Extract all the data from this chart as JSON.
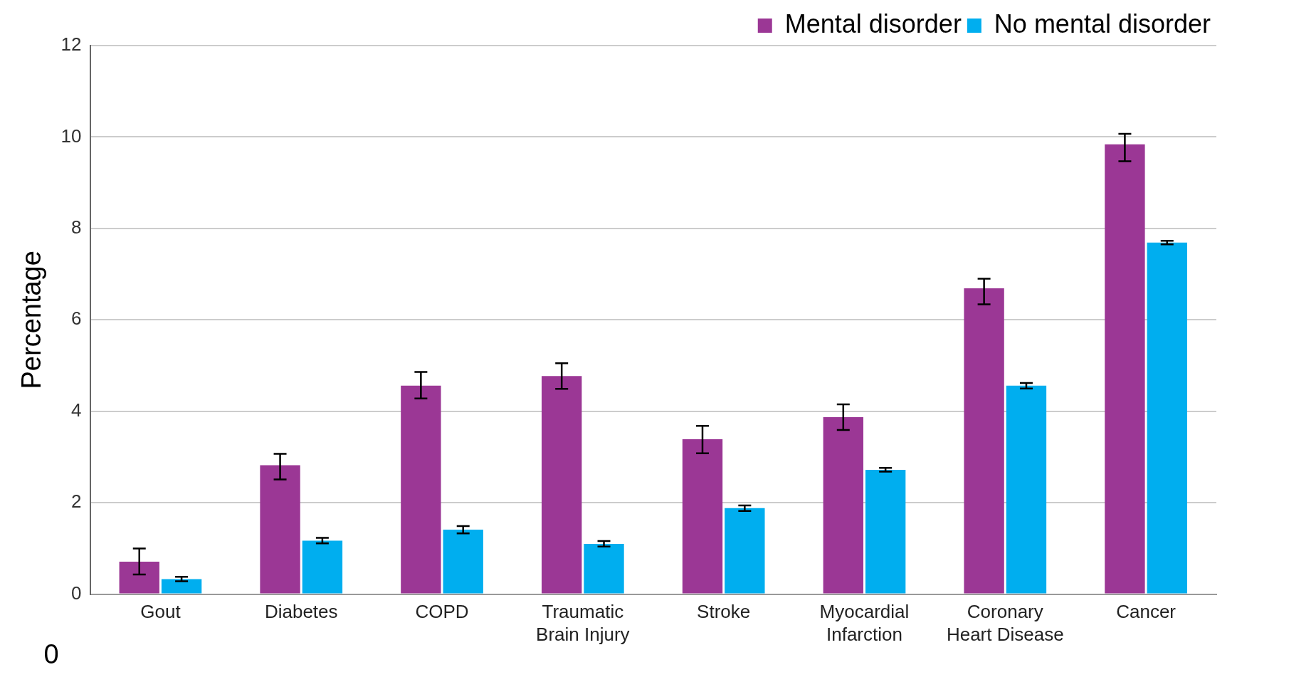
{
  "chart_data": {
    "type": "bar",
    "ylabel": "Percentage",
    "categories": [
      "Gout",
      "Diabetes",
      "COPD",
      "Traumatic Brain Injury",
      "Stroke",
      "Myocardial Infarction",
      "Coronary Heart Disease",
      "Cancer"
    ],
    "series": [
      {
        "name": "Mental disorder",
        "color": "#9b3795",
        "values": [
          0.71,
          2.82,
          4.56,
          4.77,
          3.39,
          3.87,
          6.69,
          9.84
        ],
        "errors": [
          [
            0.43,
            1.0
          ],
          [
            2.51,
            3.07
          ],
          [
            4.28,
            4.86
          ],
          [
            4.49,
            5.05
          ],
          [
            3.08,
            3.68
          ],
          [
            3.59,
            4.15
          ],
          [
            6.34,
            6.9
          ],
          [
            9.47,
            10.07
          ]
        ]
      },
      {
        "name": "No mental disorder",
        "color": "#00aeef",
        "values": [
          0.33,
          1.17,
          1.41,
          1.1,
          1.88,
          2.72,
          4.56,
          7.69
        ],
        "errors": [
          0.05,
          0.06,
          0.08,
          0.06,
          0.06,
          0.04,
          0.06,
          0.04
        ]
      }
    ],
    "ylim": [
      0,
      12
    ],
    "yticks": [
      0,
      2,
      4,
      6,
      8,
      10,
      12
    ],
    "grid": "y",
    "legend": "top right",
    "annotations": [
      "0"
    ]
  }
}
